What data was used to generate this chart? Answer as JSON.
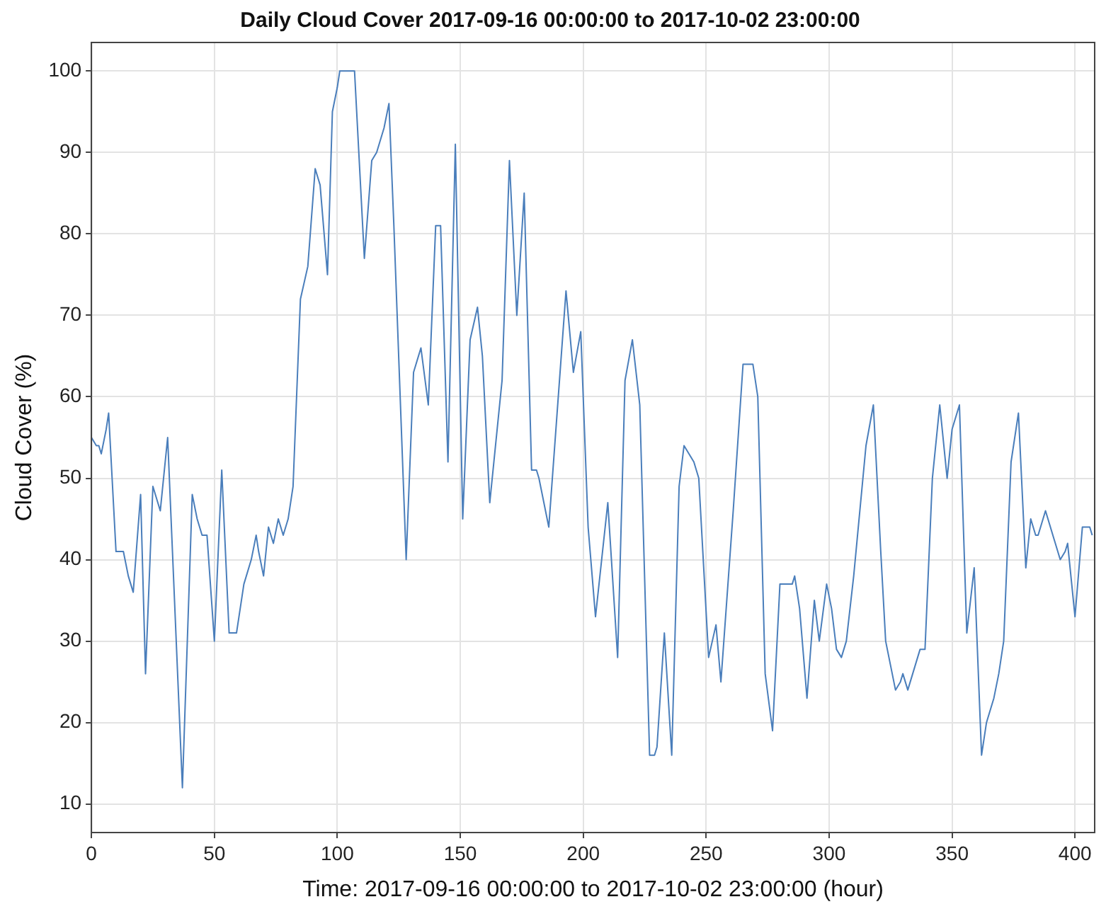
{
  "chart_data": {
    "type": "line",
    "title": "Daily Cloud Cover 2017-09-16 00:00:00 to 2017-10-02 23:00:00",
    "xlabel": "Time: 2017-09-16 00:00:00 to 2017-10-02 23:00:00 (hour)",
    "ylabel": "Cloud Cover (%)",
    "x": [
      0,
      2,
      3,
      4,
      6,
      7,
      10,
      13,
      15,
      17,
      20,
      22,
      25,
      28,
      31,
      37,
      41,
      43,
      45,
      47,
      50,
      53,
      56,
      59,
      62,
      65,
      67,
      68,
      70,
      72,
      74,
      76,
      78,
      80,
      82,
      85,
      88,
      91,
      93,
      96,
      98,
      100,
      101,
      107,
      111,
      114,
      116,
      119,
      121,
      123,
      128,
      131,
      134,
      137,
      140,
      142,
      145,
      148,
      151,
      154,
      157,
      159,
      162,
      167,
      170,
      173,
      176,
      179,
      181,
      182,
      186,
      193,
      196,
      199,
      202,
      205,
      210,
      214,
      217,
      220,
      223,
      227,
      229,
      230,
      233,
      236,
      239,
      241,
      243,
      245,
      247,
      251,
      254,
      256,
      261,
      265,
      269,
      271,
      274,
      277,
      280,
      285,
      286,
      288,
      291,
      294,
      296,
      299,
      301,
      303,
      305,
      307,
      310,
      315,
      318,
      321,
      323,
      325,
      327,
      329,
      330,
      332,
      334,
      337,
      339,
      342,
      345,
      348,
      350,
      353,
      356,
      359,
      362,
      364,
      367,
      369,
      371,
      374,
      377,
      380,
      382,
      384,
      385,
      388,
      392,
      394,
      396,
      397,
      400,
      403,
      406,
      407
    ],
    "series": [
      {
        "color": "#4a7ebb",
        "values": [
          55,
          54,
          54,
          53,
          56,
          58,
          41,
          41,
          38,
          36,
          48,
          26,
          49,
          46,
          55,
          12,
          48,
          45,
          43,
          43,
          30,
          51,
          31,
          31,
          37,
          40,
          43,
          41,
          38,
          44,
          42,
          45,
          43,
          45,
          49,
          72,
          76,
          88,
          86,
          75,
          95,
          98,
          100,
          100,
          77,
          89,
          90,
          93,
          96,
          81,
          40,
          63,
          66,
          59,
          81,
          81,
          52,
          91,
          45,
          67,
          71,
          65,
          47,
          62,
          89,
          70,
          85,
          51,
          51,
          50,
          44,
          73,
          63,
          68,
          44,
          33,
          47,
          28,
          62,
          67,
          59,
          16,
          16,
          17,
          31,
          16,
          49,
          54,
          53,
          52,
          50,
          28,
          32,
          25,
          46,
          64,
          64,
          60,
          26,
          19,
          37,
          37,
          38,
          34,
          23,
          35,
          30,
          37,
          34,
          29,
          28,
          30,
          38,
          54,
          59,
          41,
          30,
          27,
          24,
          25,
          26,
          24,
          26,
          29,
          29,
          50,
          59,
          50,
          56,
          59,
          31,
          39,
          16,
          20,
          23,
          26,
          30,
          52,
          58,
          39,
          45,
          43,
          43,
          46,
          42,
          40,
          41,
          42,
          33,
          44,
          44,
          43
        ]
      }
    ],
    "xlim": [
      0,
      408
    ],
    "ylim": [
      6.5,
      103.5
    ],
    "xticks": [
      0,
      50,
      100,
      150,
      200,
      250,
      300,
      350,
      400
    ],
    "yticks": [
      10,
      20,
      30,
      40,
      50,
      60,
      70,
      80,
      90,
      100
    ],
    "grid": true,
    "legend": false,
    "marker": "none",
    "line_style": "solid"
  }
}
